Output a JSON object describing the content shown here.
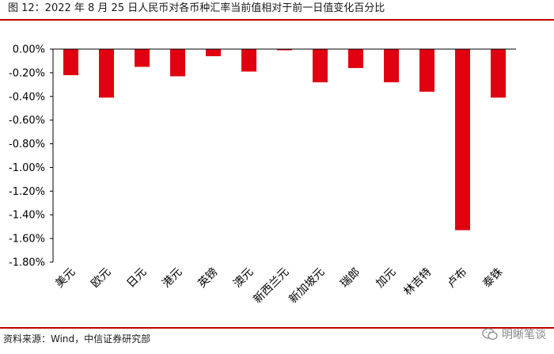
{
  "figure": {
    "title": "图 12：2022 年 8 月 25 日人民币对各币种汇率当前值相对于前一日值变化百分比",
    "source": "资料来源：Wind，中信证券研究部",
    "watermark": "明晰笔谈"
  },
  "colors": {
    "bar": "#e0000f",
    "rule": "#c00000",
    "axis": "#000000"
  },
  "chart_data": {
    "type": "bar",
    "title": "图 12：2022 年 8 月 25 日人民币对各币种汇率当前值相对于前一日值变化百分比",
    "categories": [
      "美元",
      "欧元",
      "日元",
      "港元",
      "英镑",
      "澳元",
      "新西兰元",
      "新加坡元",
      "瑞郎",
      "加元",
      "林吉特",
      "卢布",
      "泰铢"
    ],
    "values": [
      -0.22,
      -0.41,
      -0.15,
      -0.23,
      -0.06,
      -0.19,
      -0.01,
      -0.28,
      -0.16,
      -0.28,
      -0.36,
      -1.53,
      -0.41
    ],
    "unit": "%",
    "ylim": [
      -1.8,
      0.0
    ],
    "yticks": [
      0.0,
      -0.2,
      -0.4,
      -0.6,
      -0.8,
      -1.0,
      -1.2,
      -1.4,
      -1.6,
      -1.8
    ],
    "ytick_labels": [
      "0.00%",
      "-0.20%",
      "-0.40%",
      "-0.60%",
      "-0.80%",
      "-1.00%",
      "-1.20%",
      "-1.40%",
      "-1.60%",
      "-1.80%"
    ],
    "xlabel": "",
    "ylabel": "",
    "grid": false,
    "legend": "none"
  }
}
